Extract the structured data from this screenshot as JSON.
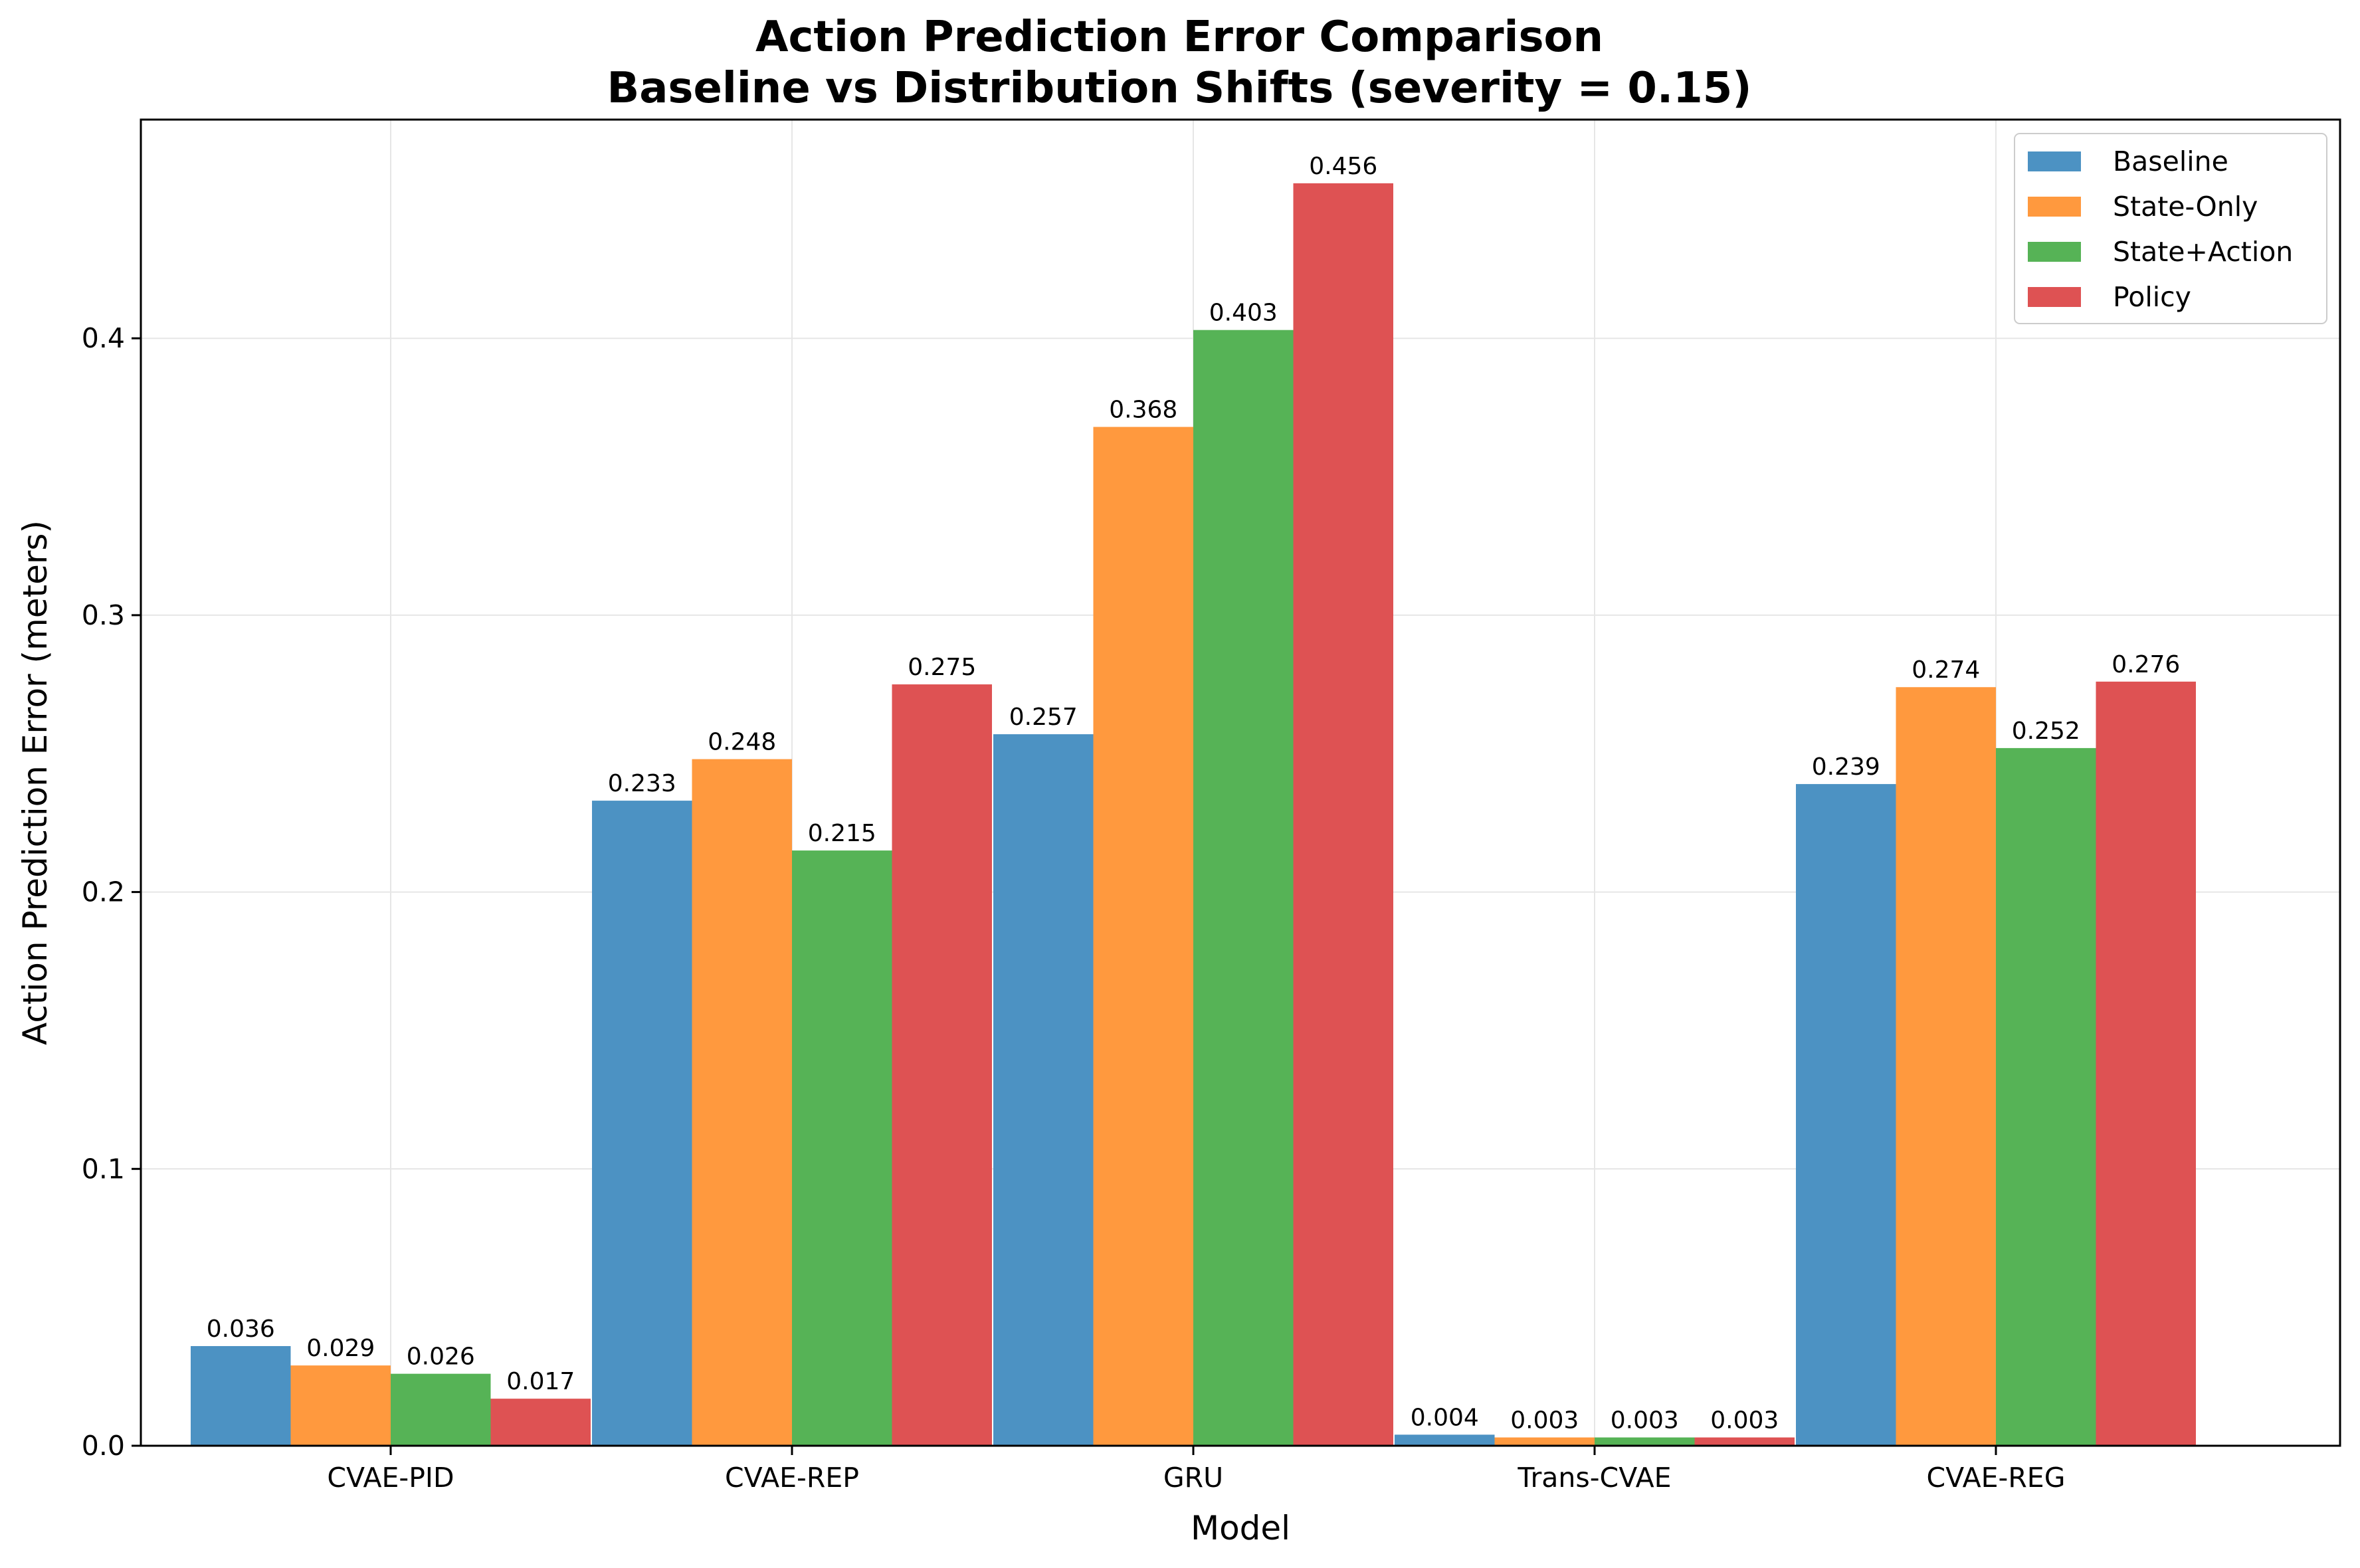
{
  "chart_data": {
    "type": "bar",
    "title": "Action Prediction Error Comparison",
    "subtitle": "Baseline vs Distribution Shifts (severity = 0.15)",
    "xlabel": "Model",
    "ylabel": "Action Prediction Error (meters)",
    "categories": [
      "CVAE-PID",
      "CVAE-REP",
      "GRU",
      "Trans-CVAE",
      "CVAE-REG"
    ],
    "series": [
      {
        "name": "Baseline",
        "color": "#4c92c3",
        "values": [
          0.036,
          0.233,
          0.257,
          0.004,
          0.239
        ],
        "labels": [
          "0.036",
          "0.233",
          "0.257",
          "0.004",
          "0.239"
        ]
      },
      {
        "name": "State-Only",
        "color": "#ff993e",
        "values": [
          0.029,
          0.248,
          0.368,
          0.003,
          0.274
        ],
        "labels": [
          "0.029",
          "0.248",
          "0.368",
          "0.003",
          "0.274"
        ]
      },
      {
        "name": "State+Action",
        "color": "#56b356",
        "values": [
          0.026,
          0.215,
          0.403,
          0.003,
          0.252
        ],
        "labels": [
          "0.026",
          "0.215",
          "0.403",
          "0.003",
          "0.252"
        ]
      },
      {
        "name": "Policy",
        "color": "#de5253",
        "values": [
          0.017,
          0.275,
          0.456,
          0.003,
          0.276
        ],
        "labels": [
          "0.017",
          "0.275",
          "0.456",
          "0.003",
          "0.276"
        ]
      }
    ],
    "ylim": [
      0,
      0.479
    ],
    "yticks": [
      0.0,
      0.1,
      0.2,
      0.3,
      0.4
    ],
    "ytick_labels": [
      "0.0",
      "0.1",
      "0.2",
      "0.3",
      "0.4"
    ],
    "grid": true,
    "legend_position": "top-right"
  }
}
